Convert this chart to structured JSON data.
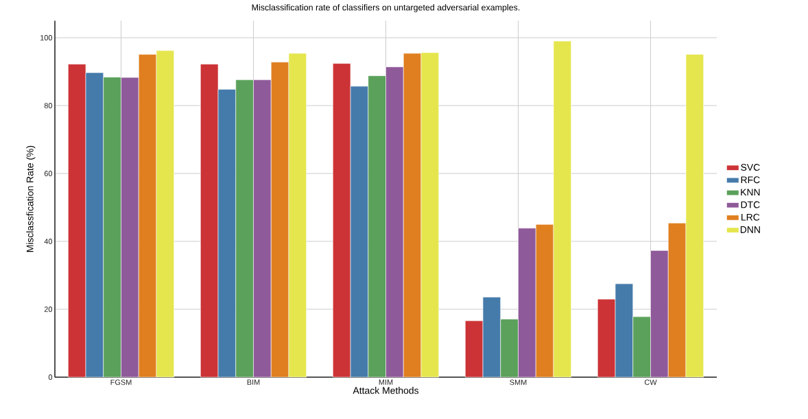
{
  "chart_data": {
    "type": "bar",
    "title": "Misclassification rate of classifiers on untargeted adversarial examples.",
    "xlabel": "Attack Methods",
    "ylabel": "Misclassfication Rate (%)",
    "categories": [
      "FGSM",
      "BIM",
      "MIM",
      "SMM",
      "CW"
    ],
    "series": [
      {
        "name": "SVC",
        "color": "#cc3336",
        "values": [
          92.2,
          92.2,
          92.4,
          16.6,
          23.0
        ]
      },
      {
        "name": "RFC",
        "color": "#457bab",
        "values": [
          89.7,
          84.8,
          85.7,
          23.6,
          27.5
        ]
      },
      {
        "name": "KNN",
        "color": "#5ba15b",
        "values": [
          88.4,
          87.6,
          88.8,
          17.1,
          17.8
        ]
      },
      {
        "name": "DTC",
        "color": "#8f5a9a",
        "values": [
          88.3,
          87.6,
          91.4,
          43.9,
          37.3
        ]
      },
      {
        "name": "LRC",
        "color": "#e07f20",
        "values": [
          95.1,
          92.8,
          95.4,
          45.0,
          45.4
        ]
      },
      {
        "name": "DNN",
        "color": "#e5e64e",
        "values": [
          96.2,
          95.4,
          95.6,
          99.0,
          95.1
        ]
      }
    ],
    "ylim": [
      0,
      105
    ],
    "yticks": [
      0,
      20,
      40,
      60,
      80,
      100
    ],
    "grid": true,
    "legend": "right"
  }
}
